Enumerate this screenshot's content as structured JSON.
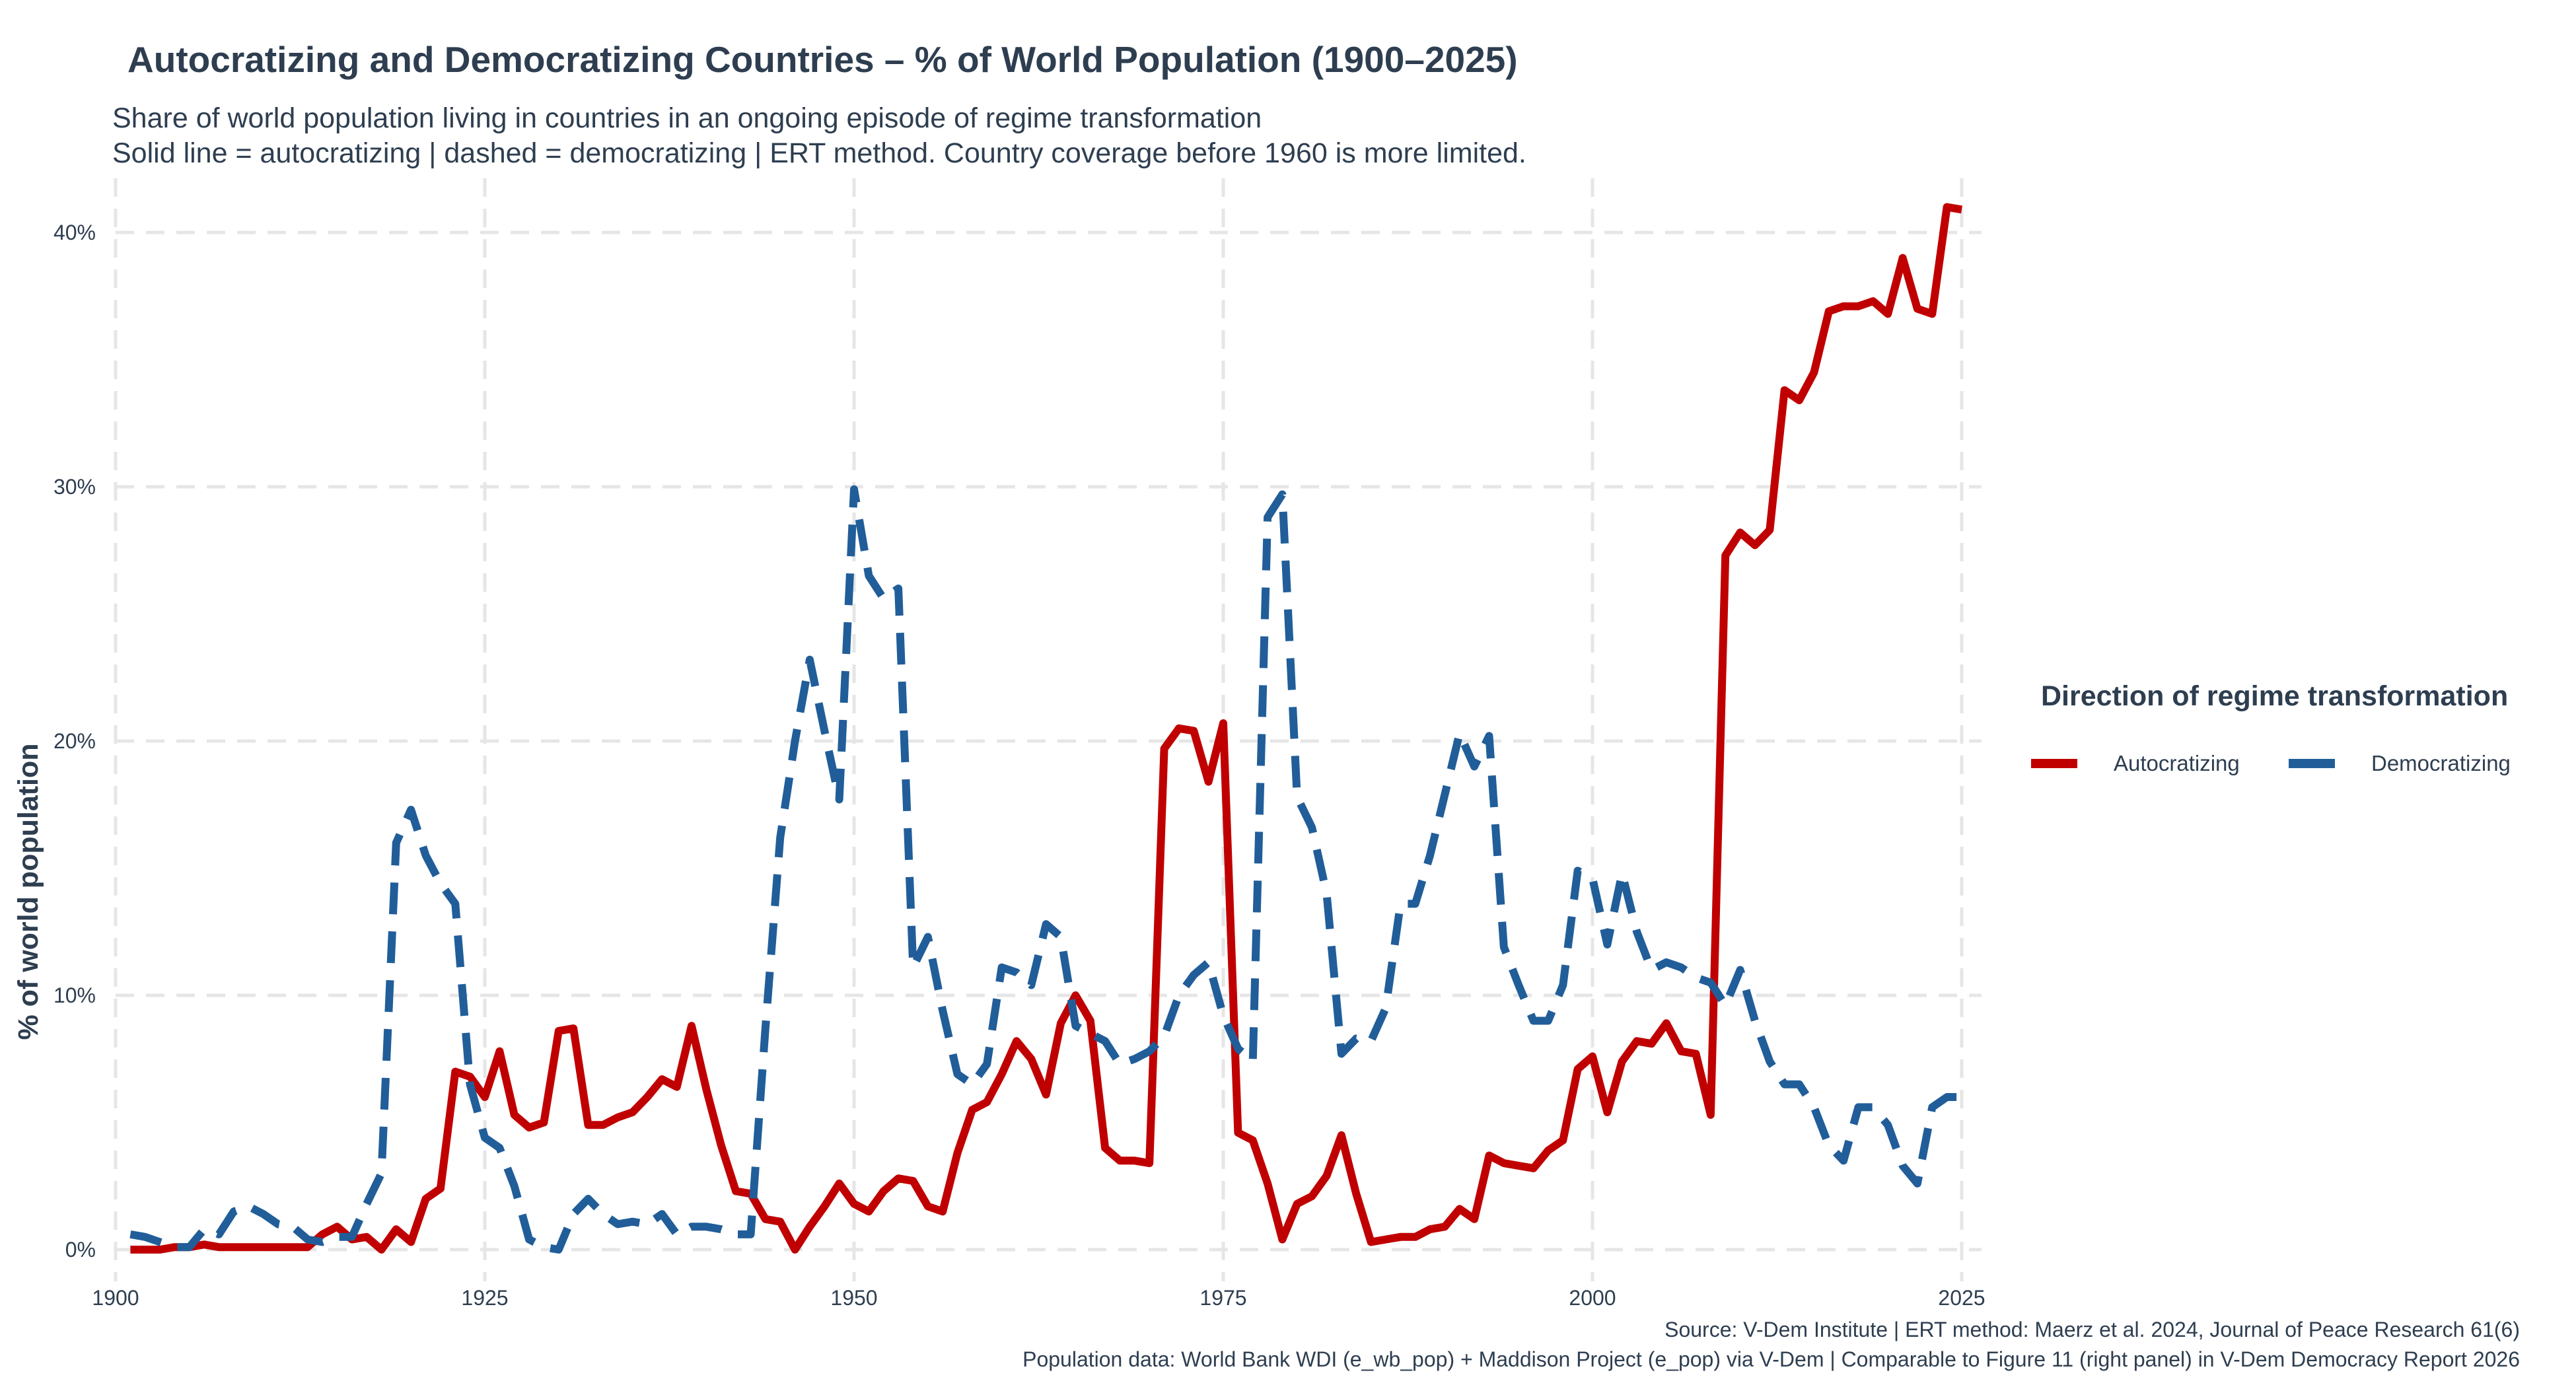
{
  "chart_data": {
    "type": "line",
    "title": "Autocratizing and Democratizing Countries – % of World Population (1900–2025)",
    "subtitle_lines": [
      "Share of world population living in countries in an ongoing episode of regime transformation",
      "Solid line = autocratizing  |  dashed = democratizing  |  ERT method.  Country coverage before 1960 is more limited."
    ],
    "xlabel": "",
    "ylabel": "% of world population",
    "xlim": [
      1900,
      2025
    ],
    "ylim": [
      0,
      41
    ],
    "x_ticks": [
      1900,
      1925,
      1950,
      1975,
      2000,
      2025
    ],
    "y_ticks": [
      0,
      10,
      20,
      30,
      40
    ],
    "y_tick_labels": [
      "0%",
      "10%",
      "20%",
      "30%",
      "40%"
    ],
    "grid": true,
    "legend": {
      "title": "Direction of regime transformation",
      "position": "right",
      "entries": [
        "Autocratizing",
        "Democratizing"
      ]
    },
    "captions": [
      "Source: V-Dem Institute  |  ERT method: Maerz et al. 2024, Journal of Peace Research 61(6)",
      "Population data: World Bank WDI (e_wb_pop) + Maddison Project (e_pop) via V-Dem  |  Comparable to Figure 11 (right panel) in V-Dem Democracy Report 2026"
    ],
    "x": [
      1901,
      1902,
      1903,
      1904,
      1905,
      1906,
      1907,
      1908,
      1909,
      1910,
      1911,
      1912,
      1913,
      1914,
      1915,
      1916,
      1917,
      1918,
      1919,
      1920,
      1921,
      1922,
      1923,
      1924,
      1925,
      1926,
      1927,
      1928,
      1929,
      1930,
      1931,
      1932,
      1933,
      1934,
      1935,
      1936,
      1937,
      1938,
      1939,
      1940,
      1941,
      1942,
      1943,
      1944,
      1945,
      1946,
      1947,
      1948,
      1949,
      1950,
      1951,
      1952,
      1953,
      1954,
      1955,
      1956,
      1957,
      1958,
      1959,
      1960,
      1961,
      1962,
      1963,
      1964,
      1965,
      1966,
      1967,
      1968,
      1969,
      1970,
      1971,
      1972,
      1973,
      1974,
      1975,
      1976,
      1977,
      1978,
      1979,
      1980,
      1981,
      1982,
      1983,
      1984,
      1985,
      1986,
      1987,
      1988,
      1989,
      1990,
      1991,
      1992,
      1993,
      1994,
      1995,
      1996,
      1997,
      1998,
      1999,
      2000,
      2001,
      2002,
      2003,
      2004,
      2005,
      2006,
      2007,
      2008,
      2009,
      2010,
      2011,
      2012,
      2013,
      2014,
      2015,
      2016,
      2017,
      2018,
      2019,
      2020,
      2021,
      2022,
      2023,
      2024,
      2025
    ],
    "series": [
      {
        "name": "Autocratizing",
        "color": "#c00000",
        "style": "solid",
        "values": [
          0,
          0,
          0,
          0.1,
          0.1,
          0.2,
          0.1,
          0.1,
          0.1,
          0.1,
          0.1,
          0.1,
          0.1,
          0.6,
          0.9,
          0.4,
          0.5,
          0,
          0.8,
          0.3,
          2,
          2.4,
          7,
          6.8,
          6,
          7.8,
          5.3,
          4.8,
          5,
          8.6,
          8.7,
          4.9,
          4.9,
          5.2,
          5.4,
          6,
          6.7,
          6.4,
          8.8,
          6.3,
          4.1,
          2.3,
          2.2,
          1.2,
          1.1,
          0,
          0.9,
          1.7,
          2.6,
          1.8,
          1.5,
          2.3,
          2.8,
          2.7,
          1.7,
          1.5,
          3.8,
          5.5,
          5.8,
          6.9,
          8.2,
          7.5,
          6.1,
          8.9,
          10,
          9,
          4,
          3.5,
          3.5,
          3.4,
          19.7,
          20.5,
          20.4,
          18.4,
          20.7,
          4.6,
          4.3,
          2.6,
          0.4,
          1.8,
          2.1,
          2.9,
          4.5,
          2.2,
          0.3,
          0.4,
          0.5,
          0.5,
          0.8,
          0.9,
          1.6,
          1.2,
          3.7,
          3.4,
          3.3,
          3.2,
          3.9,
          4.3,
          7.1,
          7.6,
          5.4,
          7.4,
          8.2,
          8.1,
          8.9,
          7.8,
          7.7,
          5.3,
          27.3,
          28.2,
          27.7,
          28.3,
          33.8,
          33.4,
          34.5,
          36.9,
          37.1,
          37.1,
          37.3,
          36.8,
          39,
          37,
          36.8,
          41,
          40.9
        ]
      },
      {
        "name": "Democratizing",
        "color": "#215e99",
        "style": "dashed",
        "values": [
          0.6,
          0.5,
          0.3,
          0.1,
          0.1,
          0.8,
          0.6,
          1.5,
          1.7,
          1.4,
          1,
          0.9,
          0.4,
          0.3,
          0.5,
          0.5,
          1.8,
          3,
          16,
          17.3,
          15.5,
          14.4,
          13.6,
          6.5,
          4.4,
          4,
          2.5,
          0.4,
          0.1,
          0,
          1.4,
          2,
          1.4,
          1,
          1.1,
          1,
          1.4,
          0.6,
          0.9,
          0.9,
          0.8,
          0.6,
          0.6,
          8.7,
          16.2,
          20,
          23.2,
          20.4,
          17.7,
          29.9,
          26.5,
          25.6,
          26,
          11.1,
          12.3,
          9.4,
          6.9,
          6.5,
          7.3,
          11.1,
          10.9,
          10.4,
          12.8,
          12.3,
          8.8,
          8.5,
          8.2,
          7.3,
          7.5,
          7.8,
          8.4,
          10,
          10.8,
          11.3,
          9.2,
          7.9,
          7.4,
          28.8,
          29.7,
          17.8,
          16.6,
          14,
          7.7,
          8.3,
          8.2,
          9.5,
          13.6,
          13.6,
          15.5,
          17.9,
          20.3,
          19,
          20.2,
          11.9,
          10.4,
          9,
          9,
          10.4,
          14.9,
          14.6,
          12,
          14.8,
          12.5,
          11,
          11.3,
          11.1,
          10.7,
          10.5,
          9.6,
          11,
          9,
          7.4,
          6.5,
          6.5,
          5.6,
          4.1,
          3.5,
          5.6,
          5.6,
          4.9,
          3.3,
          2.6,
          5.6,
          6,
          6
        ]
      }
    ]
  }
}
